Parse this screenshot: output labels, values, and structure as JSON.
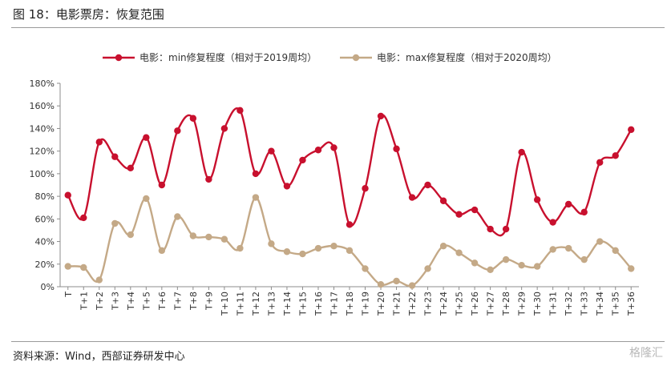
{
  "figure": {
    "title": "图 18：电影票房：恢复范围",
    "source": "资料来源：Wind，西部证券研发中心",
    "watermark": "格隆汇"
  },
  "colors": {
    "series_min": "#c8102e",
    "series_max": "#c4a987"
  },
  "chart_data": {
    "type": "line",
    "categories": [
      "T",
      "T+1",
      "T+2",
      "T+3",
      "T+4",
      "T+5",
      "T+6",
      "T+7",
      "T+8",
      "T+9",
      "T+10",
      "T+11",
      "T+12",
      "T+13",
      "T+14",
      "T+15",
      "T+16",
      "T+17",
      "T+18",
      "T+19",
      "T+20",
      "T+21",
      "T+22",
      "T+23",
      "T+24",
      "T+25",
      "T+26",
      "T+27",
      "T+28",
      "T+29",
      "T+30",
      "T+31",
      "T+32",
      "T+33",
      "T+34",
      "T+35",
      "T+36"
    ],
    "y_ticks": [
      "0%",
      "20%",
      "40%",
      "60%",
      "80%",
      "100%",
      "120%",
      "140%",
      "160%",
      "180%"
    ],
    "ylim": [
      0,
      180
    ],
    "legend_position": "top-center",
    "grid": false,
    "series": [
      {
        "name": "电影：min修复程度（相对于2019周均）",
        "values": [
          81,
          61,
          128,
          115,
          105,
          132,
          90,
          138,
          149,
          95,
          140,
          156,
          100,
          120,
          89,
          112,
          121,
          123,
          55,
          87,
          151,
          122,
          79,
          90,
          76,
          64,
          68,
          51,
          51,
          119,
          77,
          57,
          73,
          66,
          110,
          116,
          139
        ]
      },
      {
        "name": "电影：max修复程度（相对于2020周均）",
        "values": [
          18,
          17,
          6,
          56,
          46,
          78,
          32,
          62,
          45,
          44,
          42,
          34,
          79,
          38,
          31,
          29,
          34,
          36,
          32,
          16,
          2,
          5,
          1,
          16,
          36,
          30,
          21,
          15,
          24,
          19,
          18,
          33,
          34,
          24,
          40,
          32,
          16
        ]
      }
    ]
  }
}
